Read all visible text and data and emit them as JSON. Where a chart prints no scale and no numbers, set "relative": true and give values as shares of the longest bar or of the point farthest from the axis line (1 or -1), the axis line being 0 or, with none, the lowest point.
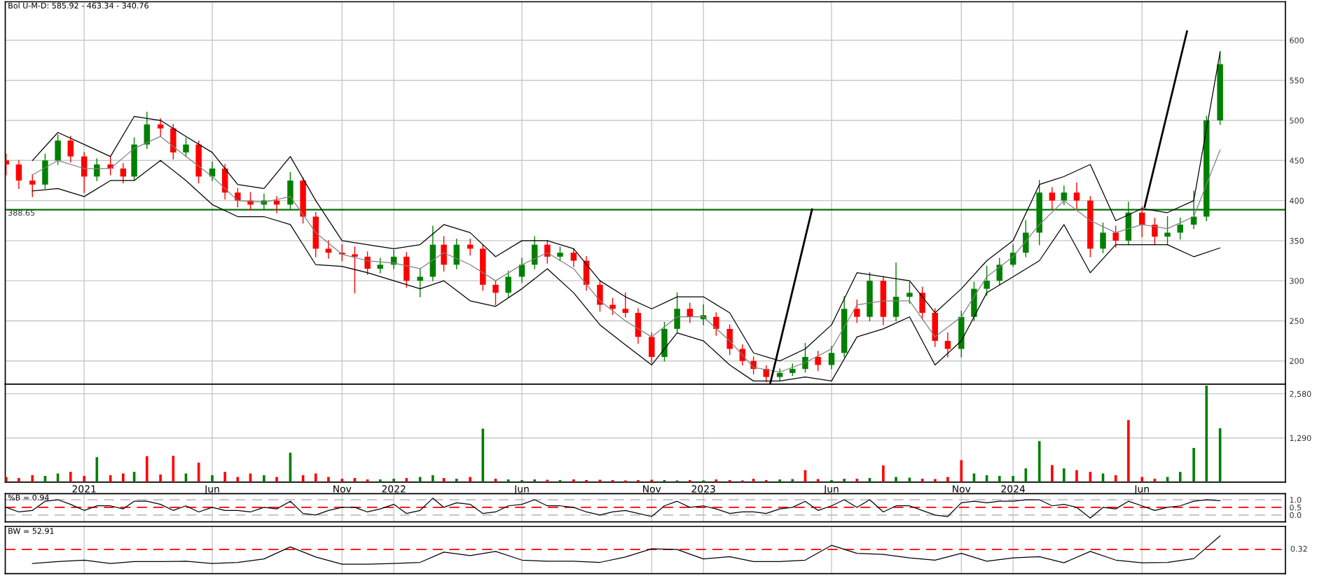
{
  "chart_data": [
    {
      "type": "candlestick",
      "title": "Bol U-M-D: 585.92 - 463.34 - 340.76",
      "xlim": [
        "2020-09-30",
        "2024-11-17"
      ],
      "ylim": [
        171,
        648
      ],
      "xticks": [
        {
          "value": "2021-01-01",
          "label": null
        },
        {
          "value": "2021-06-01",
          "label": null
        },
        {
          "value": "2021-11-01",
          "label": null
        },
        {
          "value": "2022-01-01",
          "label": null
        },
        {
          "value": "2022-06-01",
          "label": null
        },
        {
          "value": "2022-11-01",
          "label": null
        },
        {
          "value": "2023-01-01",
          "label": null
        },
        {
          "value": "2023-06-01",
          "label": null
        },
        {
          "value": "2023-11-01",
          "label": null
        },
        {
          "value": "2024-01-01",
          "label": null
        },
        {
          "value": "2024-06-01",
          "label": null
        }
      ],
      "yticks": [
        200,
        250,
        300,
        350,
        400,
        450,
        500,
        550,
        600
      ],
      "grid": true,
      "tick_labels": "y",
      "ref_lines": [
        {
          "axis": "y",
          "value": 388.65,
          "label": "388.65",
          "color": "#007000",
          "line_style": "solid"
        }
      ],
      "x": [
        "2020-10-01",
        "2020-10-16",
        "2020-11-01",
        "2020-11-16",
        "2020-12-01",
        "2020-12-16",
        "2021-01-01",
        "2021-01-16",
        "2021-02-01",
        "2021-02-16",
        "2021-03-01",
        "2021-03-16",
        "2021-04-01",
        "2021-04-16",
        "2021-05-01",
        "2021-05-16",
        "2021-06-01",
        "2021-06-16",
        "2021-07-01",
        "2021-07-16",
        "2021-08-01",
        "2021-08-16",
        "2021-09-01",
        "2021-09-16",
        "2021-10-01",
        "2021-10-16",
        "2021-11-01",
        "2021-11-16",
        "2021-12-01",
        "2021-12-16",
        "2022-01-01",
        "2022-01-16",
        "2022-02-01",
        "2022-02-16",
        "2022-03-01",
        "2022-03-16",
        "2022-04-01",
        "2022-04-16",
        "2022-05-01",
        "2022-05-16",
        "2022-06-01",
        "2022-06-16",
        "2022-07-01",
        "2022-07-16",
        "2022-08-01",
        "2022-08-16",
        "2022-09-01",
        "2022-09-16",
        "2022-10-01",
        "2022-10-16",
        "2022-11-01",
        "2022-11-16",
        "2022-12-01",
        "2022-12-16",
        "2023-01-01",
        "2023-01-16",
        "2023-02-01",
        "2023-02-16",
        "2023-03-01",
        "2023-03-16",
        "2023-04-01",
        "2023-04-16",
        "2023-05-01",
        "2023-05-16",
        "2023-06-01",
        "2023-06-16",
        "2023-07-01",
        "2023-07-16",
        "2023-08-01",
        "2023-08-16",
        "2023-09-01",
        "2023-09-16",
        "2023-10-01",
        "2023-10-16",
        "2023-11-01",
        "2023-11-16",
        "2023-12-01",
        "2023-12-16",
        "2024-01-01",
        "2024-01-16",
        "2024-02-01",
        "2024-02-16",
        "2024-03-01",
        "2024-03-16",
        "2024-04-01",
        "2024-04-16",
        "2024-05-01",
        "2024-05-16",
        "2024-06-01",
        "2024-06-16",
        "2024-07-01",
        "2024-07-16",
        "2024-08-01",
        "2024-08-16",
        "2024-09-01"
      ],
      "ohlc": [
        [
          450,
          458,
          432,
          445
        ],
        [
          445,
          450,
          415,
          425
        ],
        [
          425,
          432,
          405,
          420
        ],
        [
          420,
          458,
          415,
          450
        ],
        [
          450,
          482,
          445,
          475
        ],
        [
          475,
          480,
          448,
          455
        ],
        [
          455,
          460,
          410,
          430
        ],
        [
          430,
          452,
          425,
          445
        ],
        [
          445,
          455,
          432,
          440
        ],
        [
          440,
          446,
          422,
          430
        ],
        [
          430,
          478,
          426,
          470
        ],
        [
          470,
          510,
          465,
          495
        ],
        [
          495,
          502,
          480,
          490
        ],
        [
          490,
          495,
          452,
          460
        ],
        [
          460,
          478,
          455,
          470
        ],
        [
          470,
          474,
          422,
          430
        ],
        [
          430,
          448,
          425,
          440
        ],
        [
          440,
          445,
          402,
          410
        ],
        [
          410,
          415,
          392,
          400
        ],
        [
          400,
          410,
          388,
          395
        ],
        [
          395,
          408,
          390,
          400
        ],
        [
          400,
          405,
          385,
          395
        ],
        [
          395,
          435,
          390,
          425
        ],
        [
          425,
          428,
          372,
          380
        ],
        [
          380,
          385,
          330,
          340
        ],
        [
          340,
          350,
          328,
          335
        ],
        [
          335,
          345,
          325,
          333
        ],
        [
          333,
          342,
          285,
          330
        ],
        [
          330,
          336,
          308,
          315
        ],
        [
          315,
          328,
          310,
          320
        ],
        [
          320,
          338,
          315,
          330
        ],
        [
          330,
          335,
          292,
          300
        ],
        [
          300,
          315,
          280,
          305
        ],
        [
          305,
          368,
          300,
          345
        ],
        [
          345,
          355,
          312,
          320
        ],
        [
          320,
          352,
          315,
          345
        ],
        [
          345,
          352,
          332,
          340
        ],
        [
          340,
          345,
          288,
          295
        ],
        [
          295,
          300,
          270,
          285
        ],
        [
          285,
          312,
          280,
          305
        ],
        [
          305,
          328,
          298,
          320
        ],
        [
          320,
          355,
          315,
          345
        ],
        [
          345,
          350,
          322,
          330
        ],
        [
          330,
          342,
          325,
          335
        ],
        [
          335,
          340,
          318,
          325
        ],
        [
          325,
          330,
          288,
          295
        ],
        [
          295,
          300,
          262,
          270
        ],
        [
          270,
          278,
          258,
          265
        ],
        [
          265,
          285,
          255,
          260
        ],
        [
          260,
          265,
          222,
          230
        ],
        [
          230,
          235,
          198,
          205
        ],
        [
          205,
          248,
          200,
          240
        ],
        [
          240,
          285,
          235,
          265
        ],
        [
          265,
          272,
          248,
          255
        ],
        [
          252,
          270,
          245,
          257
        ],
        [
          255,
          260,
          232,
          240
        ],
        [
          240,
          245,
          208,
          215
        ],
        [
          215,
          220,
          195,
          200
        ],
        [
          200,
          205,
          184,
          190
        ],
        [
          190,
          194,
          174,
          180
        ],
        [
          180,
          190,
          176,
          185
        ],
        [
          185,
          196,
          182,
          190
        ],
        [
          190,
          222,
          186,
          205
        ],
        [
          205,
          212,
          188,
          195
        ],
        [
          195,
          218,
          190,
          210
        ],
        [
          210,
          280,
          205,
          265
        ],
        [
          265,
          276,
          248,
          255
        ],
        [
          255,
          310,
          250,
          300
        ],
        [
          300,
          305,
          245,
          255
        ],
        [
          255,
          322,
          250,
          280
        ],
        [
          280,
          298,
          272,
          285
        ],
        [
          285,
          292,
          252,
          260
        ],
        [
          260,
          265,
          218,
          225
        ],
        [
          225,
          235,
          205,
          215
        ],
        [
          215,
          262,
          205,
          255
        ],
        [
          255,
          298,
          250,
          290
        ],
        [
          290,
          318,
          282,
          300
        ],
        [
          300,
          328,
          295,
          320
        ],
        [
          320,
          345,
          318,
          335
        ],
        [
          335,
          375,
          330,
          360
        ],
        [
          360,
          425,
          345,
          410
        ],
        [
          410,
          416,
          390,
          400
        ],
        [
          400,
          418,
          395,
          410
        ],
        [
          410,
          422,
          390,
          400
        ],
        [
          400,
          405,
          330,
          340
        ],
        [
          340,
          372,
          335,
          360
        ],
        [
          360,
          368,
          342,
          350
        ],
        [
          350,
          398,
          345,
          385
        ],
        [
          385,
          392,
          355,
          370
        ],
        [
          370,
          378,
          345,
          355
        ],
        [
          355,
          380,
          345,
          360
        ],
        [
          360,
          378,
          352,
          370
        ],
        [
          370,
          412,
          365,
          380
        ],
        [
          380,
          505,
          375,
          500
        ],
        [
          500,
          586,
          495,
          570
        ]
      ],
      "colors": [
        "#ff0000",
        "#ff0000",
        "#ff0000",
        "#008000",
        "#008000",
        "#ff0000",
        "#ff0000",
        "#008000",
        "#ff0000",
        "#ff0000",
        "#008000",
        "#008000",
        "#ff0000",
        "#ff0000",
        "#008000",
        "#ff0000",
        "#008000",
        "#ff0000",
        "#ff0000",
        "#ff0000",
        "#008000",
        "#ff0000",
        "#008000",
        "#ff0000",
        "#ff0000",
        "#ff0000",
        "#ff0000",
        "#ff0000",
        "#ff0000",
        "#008000",
        "#008000",
        "#ff0000",
        "#008000",
        "#008000",
        "#ff0000",
        "#008000",
        "#ff0000",
        "#ff0000",
        "#ff0000",
        "#008000",
        "#008000",
        "#008000",
        "#ff0000",
        "#008000",
        "#ff0000",
        "#ff0000",
        "#ff0000",
        "#ff0000",
        "#ff0000",
        "#ff0000",
        "#ff0000",
        "#008000",
        "#008000",
        "#ff0000",
        "#008000",
        "#ff0000",
        "#ff0000",
        "#ff0000",
        "#ff0000",
        "#ff0000",
        "#008000",
        "#008000",
        "#008000",
        "#ff0000",
        "#008000",
        "#008000",
        "#ff0000",
        "#008000",
        "#ff0000",
        "#008000",
        "#008000",
        "#ff0000",
        "#ff0000",
        "#ff0000",
        "#008000",
        "#008000",
        "#008000",
        "#008000",
        "#008000",
        "#008000",
        "#008000",
        "#ff0000",
        "#008000",
        "#ff0000",
        "#ff0000",
        "#008000",
        "#ff0000",
        "#008000",
        "#ff0000",
        "#ff0000",
        "#008000",
        "#008000",
        "#008000",
        "#008000",
        "#008000"
      ],
      "series": [
        {
          "type": "line",
          "color": "#000000",
          "x": [
            "2020-11-01",
            "2020-12-01",
            "2021-01-01",
            "2021-02-01",
            "2021-03-01",
            "2021-04-01",
            "2021-05-01",
            "2021-06-01",
            "2021-07-01",
            "2021-08-01",
            "2021-09-01",
            "2021-10-01",
            "2021-11-01",
            "2021-12-01",
            "2022-01-01",
            "2022-02-01",
            "2022-03-01",
            "2022-04-01",
            "2022-05-01",
            "2022-06-01",
            "2022-07-01",
            "2022-08-01",
            "2022-09-01",
            "2022-10-01",
            "2022-11-01",
            "2022-12-01",
            "2023-01-01",
            "2023-02-01",
            "2023-03-01",
            "2023-04-01",
            "2023-05-01",
            "2023-06-01",
            "2023-07-01",
            "2023-08-01",
            "2023-09-01",
            "2023-10-01",
            "2023-11-01",
            "2023-12-01",
            "2024-01-01",
            "2024-02-01",
            "2024-03-01",
            "2024-04-01",
            "2024-05-01",
            "2024-06-01",
            "2024-07-01",
            "2024-08-01",
            "2024-09-01"
          ],
          "values": [
            450,
            485,
            470,
            455,
            505,
            500,
            480,
            460,
            420,
            415,
            455,
            400,
            350,
            345,
            340,
            345,
            370,
            360,
            330,
            350,
            350,
            340,
            300,
            280,
            265,
            280,
            280,
            260,
            210,
            200,
            215,
            245,
            310,
            305,
            300,
            260,
            290,
            325,
            350,
            420,
            430,
            445,
            375,
            390,
            385,
            400,
            585
          ]
        },
        {
          "type": "line",
          "color": "#808080",
          "x": [
            "2020-11-01",
            "2020-12-01",
            "2021-01-01",
            "2021-02-01",
            "2021-03-01",
            "2021-04-01",
            "2021-05-01",
            "2021-06-01",
            "2021-07-01",
            "2021-08-01",
            "2021-09-01",
            "2021-10-01",
            "2021-11-01",
            "2021-12-01",
            "2022-01-01",
            "2022-02-01",
            "2022-03-01",
            "2022-04-01",
            "2022-05-01",
            "2022-06-01",
            "2022-07-01",
            "2022-08-01",
            "2022-09-01",
            "2022-10-01",
            "2022-11-01",
            "2022-12-01",
            "2023-01-01",
            "2023-02-01",
            "2023-03-01",
            "2023-04-01",
            "2023-05-01",
            "2023-06-01",
            "2023-07-01",
            "2023-08-01",
            "2023-09-01",
            "2023-10-01",
            "2023-11-01",
            "2023-12-01",
            "2024-01-01",
            "2024-02-01",
            "2024-03-01",
            "2024-04-01",
            "2024-05-01",
            "2024-06-01",
            "2024-07-01",
            "2024-08-01",
            "2024-09-01"
          ],
          "values": [
            432,
            450,
            440,
            440,
            465,
            480,
            455,
            430,
            400,
            398,
            405,
            360,
            333,
            325,
            322,
            315,
            335,
            320,
            300,
            320,
            335,
            315,
            275,
            250,
            230,
            255,
            255,
            225,
            192,
            186,
            198,
            215,
            270,
            275,
            275,
            230,
            255,
            305,
            330,
            370,
            400,
            375,
            360,
            370,
            365,
            380,
            463
          ]
        },
        {
          "type": "line",
          "color": "#000000",
          "x": [
            "2020-11-01",
            "2020-12-01",
            "2021-01-01",
            "2021-02-01",
            "2021-03-01",
            "2021-04-01",
            "2021-05-01",
            "2021-06-01",
            "2021-07-01",
            "2021-08-01",
            "2021-09-01",
            "2021-10-01",
            "2021-11-01",
            "2021-12-01",
            "2022-01-01",
            "2022-02-01",
            "2022-03-01",
            "2022-04-01",
            "2022-05-01",
            "2022-06-01",
            "2022-07-01",
            "2022-08-01",
            "2022-09-01",
            "2022-10-01",
            "2022-11-01",
            "2022-12-01",
            "2023-01-01",
            "2023-02-01",
            "2023-03-01",
            "2023-04-01",
            "2023-05-01",
            "2023-06-01",
            "2023-07-01",
            "2023-08-01",
            "2023-09-01",
            "2023-10-01",
            "2023-11-01",
            "2023-12-01",
            "2024-01-01",
            "2024-02-01",
            "2024-03-01",
            "2024-04-01",
            "2024-05-01",
            "2024-06-01",
            "2024-07-01",
            "2024-08-01",
            "2024-09-01"
          ],
          "values": [
            412,
            415,
            405,
            425,
            425,
            450,
            425,
            395,
            380,
            380,
            370,
            320,
            318,
            310,
            300,
            290,
            300,
            275,
            268,
            290,
            315,
            285,
            245,
            220,
            195,
            235,
            225,
            195,
            175,
            175,
            180,
            175,
            230,
            240,
            255,
            195,
            225,
            285,
            305,
            325,
            370,
            310,
            345,
            345,
            345,
            330,
            341
          ]
        },
        {
          "type": "line",
          "color": "#000000",
          "line_style": "solid",
          "x": [
            "2023-03-21",
            "2023-05-09"
          ],
          "values": [
            173,
            389
          ]
        },
        {
          "type": "line",
          "color": "#000000",
          "line_style": "solid",
          "x": [
            "2024-06-04",
            "2024-07-24"
          ],
          "values": [
            392,
            611
          ]
        }
      ]
    },
    {
      "type": "bar",
      "xlim": [
        "2020-09-30",
        "2024-11-17"
      ],
      "ylim": [
        0,
        2860
      ],
      "xticks": [
        {
          "value": "2021-01-01",
          "label": "2021"
        },
        {
          "value": "2021-06-01",
          "label": "Jun"
        },
        {
          "value": "2021-11-01",
          "label": "Nov"
        },
        {
          "value": "2022-01-01",
          "label": "2022"
        },
        {
          "value": "2022-06-01",
          "label": "Jun"
        },
        {
          "value": "2022-11-01",
          "label": "Nov"
        },
        {
          "value": "2023-01-01",
          "label": "2023"
        },
        {
          "value": "2023-06-01",
          "label": "Jun"
        },
        {
          "value": "2023-11-01",
          "label": "Nov"
        },
        {
          "value": "2024-01-01",
          "label": "2024"
        },
        {
          "value": "2024-06-01",
          "label": "Jun"
        }
      ],
      "yticks": [
        {
          "value": 1290,
          "label": "1,290"
        },
        {
          "value": 2580,
          "label": "2,580"
        }
      ],
      "grid": true,
      "x": [
        "2020-10-01",
        "2020-10-16",
        "2020-11-01",
        "2020-11-16",
        "2020-12-01",
        "2020-12-16",
        "2021-01-01",
        "2021-01-16",
        "2021-02-01",
        "2021-02-16",
        "2021-03-01",
        "2021-03-16",
        "2021-04-01",
        "2021-04-16",
        "2021-05-01",
        "2021-05-16",
        "2021-06-01",
        "2021-06-16",
        "2021-07-01",
        "2021-07-16",
        "2021-08-01",
        "2021-08-16",
        "2021-09-01",
        "2021-09-16",
        "2021-10-01",
        "2021-10-16",
        "2021-11-01",
        "2021-11-16",
        "2021-12-01",
        "2021-12-16",
        "2022-01-01",
        "2022-01-16",
        "2022-02-01",
        "2022-02-16",
        "2022-03-01",
        "2022-03-16",
        "2022-04-01",
        "2022-04-16",
        "2022-05-01",
        "2022-05-16",
        "2022-06-01",
        "2022-06-16",
        "2022-07-01",
        "2022-07-16",
        "2022-08-01",
        "2022-08-16",
        "2022-09-01",
        "2022-09-16",
        "2022-10-01",
        "2022-10-16",
        "2022-11-01",
        "2022-11-16",
        "2022-12-01",
        "2022-12-16",
        "2023-01-01",
        "2023-01-16",
        "2023-02-01",
        "2023-02-16",
        "2023-03-01",
        "2023-03-16",
        "2023-04-01",
        "2023-04-16",
        "2023-05-01",
        "2023-05-16",
        "2023-06-01",
        "2023-06-16",
        "2023-07-01",
        "2023-07-16",
        "2023-08-01",
        "2023-08-16",
        "2023-09-01",
        "2023-09-16",
        "2023-10-01",
        "2023-10-16",
        "2023-11-01",
        "2023-11-16",
        "2023-12-01",
        "2023-12-16",
        "2024-01-01",
        "2024-01-16",
        "2024-02-01",
        "2024-02-16",
        "2024-03-01",
        "2024-03-16",
        "2024-04-01",
        "2024-04-16",
        "2024-05-01",
        "2024-05-16",
        "2024-06-01",
        "2024-06-16",
        "2024-07-01",
        "2024-07-16",
        "2024-08-01",
        "2024-08-16",
        "2024-09-01"
      ],
      "values": [
        150,
        120,
        200,
        180,
        250,
        300,
        180,
        730,
        200,
        250,
        300,
        760,
        220,
        770,
        250,
        570,
        200,
        300,
        150,
        250,
        200,
        150,
        860,
        200,
        250,
        150,
        100,
        120,
        80,
        80,
        100,
        120,
        150,
        200,
        120,
        100,
        150,
        1560,
        100,
        80,
        60,
        80,
        70,
        60,
        80,
        60,
        70,
        60,
        50,
        60,
        70,
        60,
        50,
        60,
        50,
        80,
        60,
        50,
        100,
        60,
        80,
        90,
        350,
        90,
        60,
        100,
        100,
        120,
        490,
        150,
        130,
        100,
        90,
        150,
        640,
        250,
        200,
        180,
        180,
        400,
        1200,
        500,
        400,
        350,
        300,
        250,
        200,
        1810,
        150,
        100,
        150,
        300,
        1000,
        2820,
        1570
      ],
      "colors": [
        "#ff0000",
        "#ff0000",
        "#ff0000",
        "#008000",
        "#008000",
        "#ff0000",
        "#ff0000",
        "#008000",
        "#ff0000",
        "#ff0000",
        "#008000",
        "#ff0000",
        "#ff0000",
        "#ff0000",
        "#008000",
        "#ff0000",
        "#008000",
        "#ff0000",
        "#ff0000",
        "#ff0000",
        "#008000",
        "#ff0000",
        "#008000",
        "#ff0000",
        "#ff0000",
        "#ff0000",
        "#ff0000",
        "#ff0000",
        "#ff0000",
        "#008000",
        "#008000",
        "#ff0000",
        "#008000",
        "#008000",
        "#ff0000",
        "#008000",
        "#ff0000",
        "#008000",
        "#ff0000",
        "#008000",
        "#008000",
        "#008000",
        "#ff0000",
        "#008000",
        "#ff0000",
        "#ff0000",
        "#ff0000",
        "#ff0000",
        "#ff0000",
        "#ff0000",
        "#ff0000",
        "#008000",
        "#008000",
        "#ff0000",
        "#008000",
        "#ff0000",
        "#ff0000",
        "#ff0000",
        "#ff0000",
        "#ff0000",
        "#008000",
        "#008000",
        "#ff0000",
        "#ff0000",
        "#008000",
        "#008000",
        "#ff0000",
        "#008000",
        "#ff0000",
        "#008000",
        "#008000",
        "#ff0000",
        "#ff0000",
        "#ff0000",
        "#ff0000",
        "#008000",
        "#008000",
        "#008000",
        "#008000",
        "#008000",
        "#008000",
        "#ff0000",
        "#008000",
        "#ff0000",
        "#ff0000",
        "#008000",
        "#ff0000",
        "#ff0000",
        "#ff0000",
        "#ff0000",
        "#008000",
        "#008000",
        "#008000",
        "#008000",
        "#008000"
      ]
    },
    {
      "type": "line",
      "annotations": [
        "%B = 0.94"
      ],
      "xlim": [
        "2020-09-30",
        "2024-11-17"
      ],
      "ylim": [
        -0.45,
        1.4
      ],
      "xticks": [
        {
          "value": "2021-01-01",
          "label": null
        },
        {
          "value": "2021-06-01",
          "label": null
        },
        {
          "value": "2021-11-01",
          "label": null
        },
        {
          "value": "2022-01-01",
          "label": null
        },
        {
          "value": "2022-06-01",
          "label": null
        },
        {
          "value": "2022-11-01",
          "label": null
        },
        {
          "value": "2023-01-01",
          "label": null
        },
        {
          "value": "2023-06-01",
          "label": null
        },
        {
          "value": "2023-11-01",
          "label": null
        },
        {
          "value": "2024-01-01",
          "label": null
        },
        {
          "value": "2024-06-01",
          "label": null
        }
      ],
      "yticks": [
        {
          "value": 0,
          "label": "0.0"
        },
        {
          "value": 0.5,
          "label": "0.5"
        },
        {
          "value": 1,
          "label": "1.0"
        }
      ],
      "grid": "x",
      "tick_labels": "y",
      "ref_lines": [
        {
          "axis": "y",
          "value": 0,
          "color": "#c0c0c0",
          "line_style": "dashed"
        },
        {
          "axis": "y",
          "value": 0.5,
          "color": "#ff0000",
          "line_style": "dashed"
        },
        {
          "axis": "y",
          "value": 1,
          "color": "#c0c0c0",
          "line_style": "dashed"
        }
      ],
      "series": [
        {
          "color": "#000000",
          "x": [
            "2020-10-01",
            "2020-10-16",
            "2020-11-01",
            "2020-11-16",
            "2020-12-01",
            "2020-12-16",
            "2021-01-01",
            "2021-01-16",
            "2021-02-01",
            "2021-02-16",
            "2021-03-01",
            "2021-03-16",
            "2021-04-01",
            "2021-04-16",
            "2021-05-01",
            "2021-05-16",
            "2021-06-01",
            "2021-06-16",
            "2021-07-01",
            "2021-07-16",
            "2021-08-01",
            "2021-08-16",
            "2021-09-01",
            "2021-09-16",
            "2021-10-01",
            "2021-10-16",
            "2021-11-01",
            "2021-11-16",
            "2021-12-01",
            "2021-12-16",
            "2022-01-01",
            "2022-01-16",
            "2022-02-01",
            "2022-02-16",
            "2022-03-01",
            "2022-03-16",
            "2022-04-01",
            "2022-04-16",
            "2022-05-01",
            "2022-05-16",
            "2022-06-01",
            "2022-06-16",
            "2022-07-01",
            "2022-07-16",
            "2022-08-01",
            "2022-08-16",
            "2022-09-01",
            "2022-09-16",
            "2022-10-01",
            "2022-10-16",
            "2022-11-01",
            "2022-11-16",
            "2022-12-01",
            "2022-12-16",
            "2023-01-01",
            "2023-01-16",
            "2023-02-01",
            "2023-02-16",
            "2023-03-01",
            "2023-03-16",
            "2023-04-01",
            "2023-04-16",
            "2023-05-01",
            "2023-05-16",
            "2023-06-01",
            "2023-06-16",
            "2023-07-01",
            "2023-07-16",
            "2023-08-01",
            "2023-08-16",
            "2023-09-01",
            "2023-09-16",
            "2023-10-01",
            "2023-10-16",
            "2023-11-01",
            "2023-11-16",
            "2023-12-01",
            "2023-12-16",
            "2024-01-01",
            "2024-01-16",
            "2024-02-01",
            "2024-02-16",
            "2024-03-01",
            "2024-03-16",
            "2024-04-01",
            "2024-04-16",
            "2024-05-01",
            "2024-05-16",
            "2024-06-01",
            "2024-06-16",
            "2024-07-01",
            "2024-07-16",
            "2024-08-01",
            "2024-08-16",
            "2024-09-01"
          ],
          "values": [
            0.5,
            0.2,
            0.3,
            0.9,
            1.0,
            0.7,
            0.3,
            0.6,
            0.6,
            0.4,
            0.9,
            0.9,
            0.7,
            0.3,
            0.6,
            0.2,
            0.5,
            0.3,
            0.3,
            0.2,
            0.5,
            0.4,
            0.9,
            0.1,
            0.0,
            0.3,
            0.5,
            0.5,
            0.2,
            0.4,
            0.7,
            0.1,
            0.3,
            1.1,
            0.5,
            0.8,
            0.7,
            0.1,
            0.2,
            0.6,
            0.7,
            1.0,
            0.6,
            0.6,
            0.5,
            0.2,
            0.0,
            0.2,
            0.3,
            0.1,
            -0.1,
            0.6,
            0.9,
            0.5,
            0.6,
            0.4,
            0.1,
            0.2,
            0.2,
            0.1,
            0.4,
            0.5,
            0.9,
            0.3,
            0.6,
            1.0,
            0.5,
            1.0,
            0.2,
            0.6,
            0.6,
            0.3,
            0.0,
            -0.1,
            0.8,
            0.9,
            0.8,
            0.9,
            0.9,
            1.0,
            1.0,
            0.6,
            0.7,
            0.5,
            -0.2,
            0.5,
            0.4,
            0.9,
            0.6,
            0.3,
            0.5,
            0.6,
            0.9,
            1.0,
            0.94
          ]
        }
      ]
    },
    {
      "type": "line",
      "annotations": [
        "BW = 52.91",
        {
          "text": "0.32",
          "x": "2024-11-17",
          "y": 0.64
        }
      ],
      "xlim": [
        "2020-09-30",
        "2024-11-17"
      ],
      "relative": true,
      "xticks": [
        {
          "value": "2021-01-01",
          "label": null
        },
        {
          "value": "2021-06-01",
          "label": null
        },
        {
          "value": "2021-11-01",
          "label": null
        },
        {
          "value": "2022-01-01",
          "label": null
        },
        {
          "value": "2022-06-01",
          "label": null
        },
        {
          "value": "2022-11-01",
          "label": null
        },
        {
          "value": "2023-01-01",
          "label": null
        },
        {
          "value": "2023-06-01",
          "label": null
        },
        {
          "value": "2023-11-01",
          "label": null
        },
        {
          "value": "2024-01-01",
          "label": null
        },
        {
          "value": "2024-06-01",
          "label": null
        }
      ],
      "grid": "x",
      "tick_labels": false,
      "ref_lines": [
        {
          "axis": "y",
          "value": 0.64,
          "color": "#ff0000",
          "line_style": "dashed"
        }
      ],
      "series": [
        {
          "color": "#000000",
          "x": [
            "2020-11-01",
            "2020-12-01",
            "2021-01-01",
            "2021-02-01",
            "2021-03-01",
            "2021-04-01",
            "2021-05-01",
            "2021-06-01",
            "2021-07-01",
            "2021-08-01",
            "2021-09-01",
            "2021-10-01",
            "2021-11-01",
            "2021-12-01",
            "2022-01-01",
            "2022-02-01",
            "2022-03-01",
            "2022-04-01",
            "2022-05-01",
            "2022-06-01",
            "2022-07-01",
            "2022-08-01",
            "2022-09-01",
            "2022-10-01",
            "2022-11-01",
            "2022-12-01",
            "2023-01-01",
            "2023-02-01",
            "2023-03-01",
            "2023-04-01",
            "2023-05-01",
            "2023-06-01",
            "2023-07-01",
            "2023-08-01",
            "2023-09-01",
            "2023-10-01",
            "2023-11-01",
            "2023-12-01",
            "2024-01-01",
            "2024-02-01",
            "2024-03-01",
            "2024-04-01",
            "2024-05-01",
            "2024-06-01",
            "2024-07-01",
            "2024-08-01",
            "2024-09-01"
          ],
          "values": [
            0.27,
            0.32,
            0.36,
            0.27,
            0.32,
            0.32,
            0.33,
            0.27,
            0.3,
            0.39,
            0.71,
            0.44,
            0.25,
            0.25,
            0.27,
            0.3,
            0.57,
            0.48,
            0.59,
            0.36,
            0.33,
            0.33,
            0.3,
            0.44,
            0.66,
            0.64,
            0.39,
            0.45,
            0.32,
            0.32,
            0.36,
            0.75,
            0.54,
            0.51,
            0.42,
            0.36,
            0.54,
            0.33,
            0.42,
            0.45,
            0.29,
            0.59,
            0.36,
            0.29,
            0.3,
            0.4,
            1
          ]
        }
      ]
    }
  ]
}
